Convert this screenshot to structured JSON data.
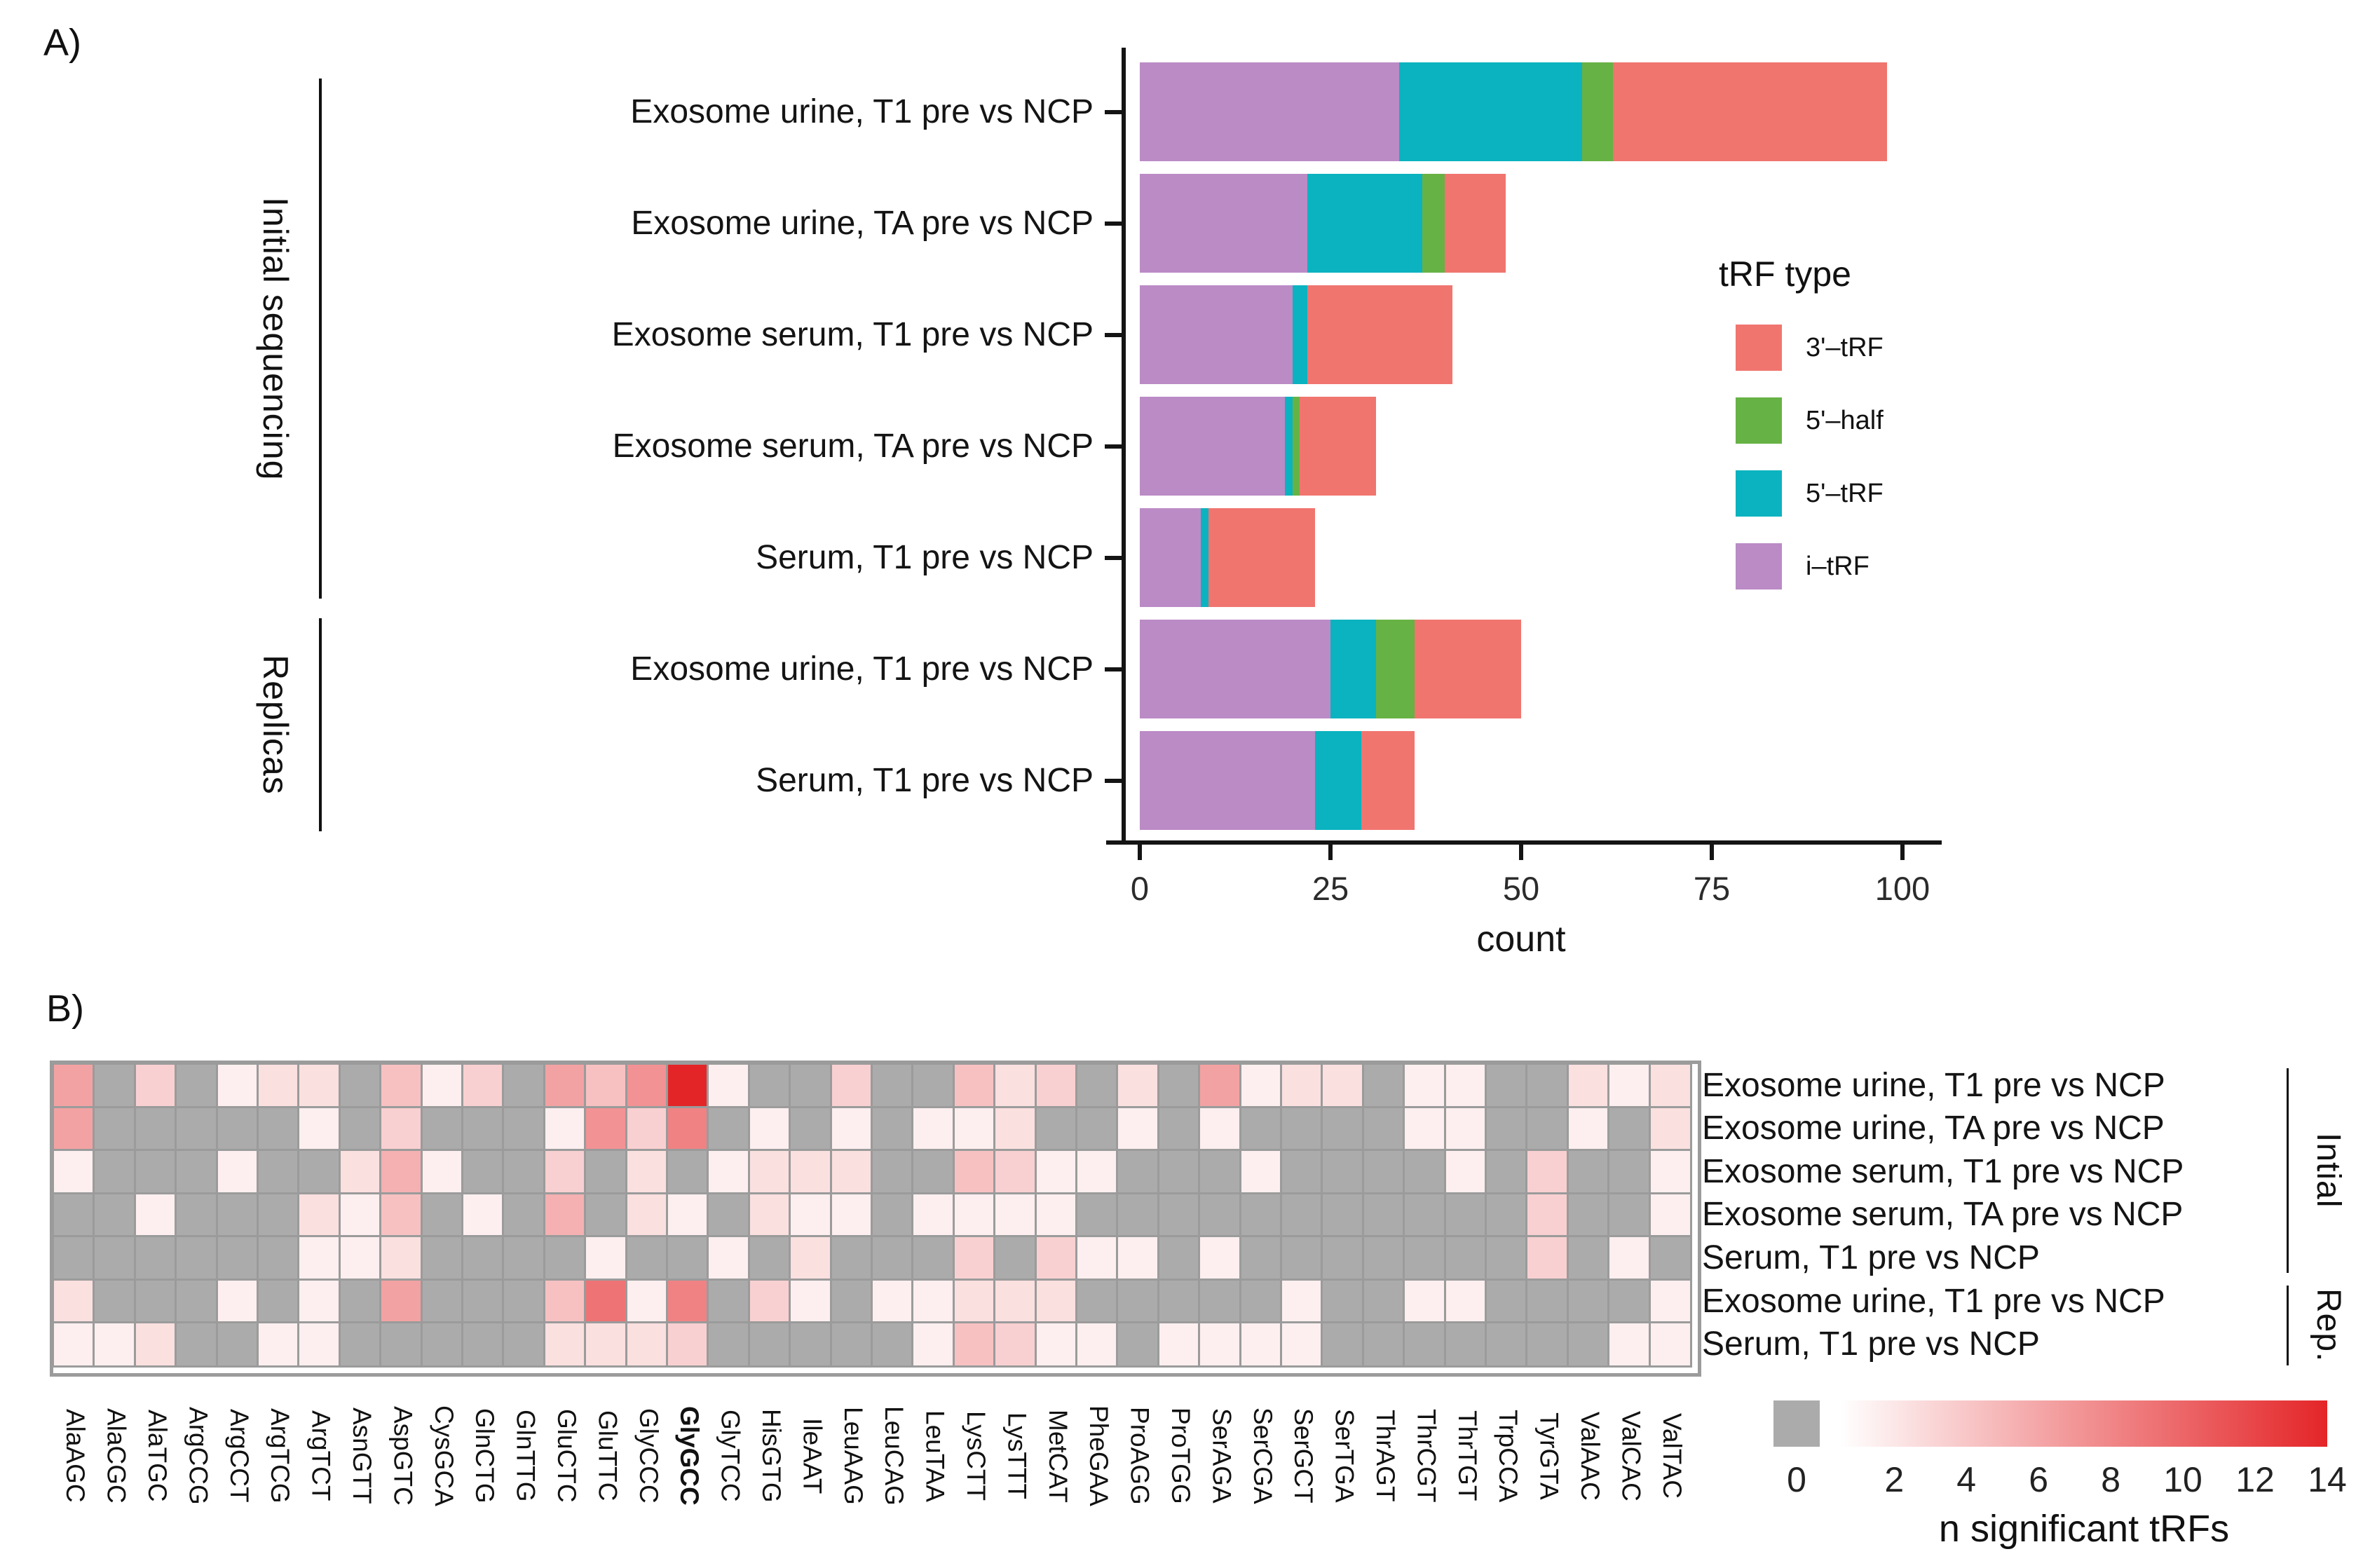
{
  "panel_a": {
    "label": "A)"
  },
  "panel_b": {
    "label": "B)"
  },
  "chart_data": [
    {
      "id": "trf-type-stacked-bars",
      "type": "bar",
      "orientation": "horizontal",
      "stacked": true,
      "title": "",
      "xlabel": "count",
      "xlim": [
        0,
        100
      ],
      "xticks": [
        0,
        25,
        50,
        75,
        100
      ],
      "categories": [
        "Exosome urine, T1 pre vs NCP",
        "Exosome urine, TA pre vs NCP",
        "Exosome serum, T1 pre vs NCP",
        "Exosome serum, TA pre vs NCP",
        "Serum, T1 pre vs NCP",
        "Exosome urine, T1 pre vs NCP",
        "Serum, T1 pre vs NCP"
      ],
      "series": [
        {
          "name": "i–tRF",
          "color": "#BB8BC6",
          "values": [
            34,
            22,
            20,
            19,
            8,
            25,
            23
          ]
        },
        {
          "name": "5'–tRF",
          "color": "#0AB3BF",
          "values": [
            24,
            15,
            2,
            1,
            1,
            6,
            6
          ]
        },
        {
          "name": "5'–half",
          "color": "#67B244",
          "values": [
            4,
            3,
            0,
            1,
            0,
            5,
            0
          ]
        },
        {
          "name": "3'–tRF",
          "color": "#F0756F",
          "values": [
            36,
            8,
            19,
            10,
            14,
            14,
            7
          ]
        }
      ],
      "legend_title": "tRF type",
      "legend_position": "right",
      "legend": [
        {
          "label": "3'–tRF",
          "color": "#F0756F"
        },
        {
          "label": "5'–half",
          "color": "#67B244"
        },
        {
          "label": "5'–tRF",
          "color": "#0AB3BF"
        },
        {
          "label": "i–tRF",
          "color": "#BB8BC6"
        }
      ],
      "group_brackets": [
        {
          "label": "Initial sequencing",
          "from": 0,
          "to": 4
        },
        {
          "label": "Replicas",
          "from": 5,
          "to": 6
        }
      ]
    },
    {
      "id": "significant-trfs-heatmap",
      "type": "heatmap",
      "columns": [
        "AlaAGC",
        "AlaCGC",
        "AlaTGC",
        "ArgCCG",
        "ArgCCT",
        "ArgTCG",
        "ArgTCT",
        "AsnGTT",
        "AspGTC",
        "CysGCA",
        "GlnCTG",
        "GlnTTG",
        "GluCTC",
        "GluTTC",
        "GlyCCC",
        "GlyGCC",
        "GlyTCC",
        "HisGTG",
        "IleAAT",
        "LeuAAG",
        "LeuCAG",
        "LeuTAA",
        "LysCTT",
        "LysTTT",
        "MetCAT",
        "PheGAA",
        "ProAGG",
        "ProTGG",
        "SerAGA",
        "SerCGA",
        "SerGCT",
        "SerTGA",
        "ThrAGT",
        "ThrCGT",
        "ThrTGT",
        "TrpCCA",
        "TyrGTA",
        "ValAAC",
        "ValCAC",
        "ValTAC"
      ],
      "bold_column": "GlyGCC",
      "rows": [
        "Exosome urine, T1 pre vs NCP",
        "Exosome urine, TA pre vs NCP",
        "Exosome serum, T1 pre vs NCP",
        "Exosome serum, TA  pre vs NCP",
        "Serum, T1 pre vs NCP",
        "Exosome urine, T1 pre vs NCP",
        "Serum, T1 pre vs NCP"
      ],
      "row_brackets": [
        {
          "label": "Intial",
          "from": 0,
          "to": 4
        },
        {
          "label": "Rep.",
          "from": 5,
          "to": 6
        }
      ],
      "values": [
        [
          6,
          0,
          3,
          0,
          1,
          2,
          2,
          0,
          4,
          1,
          3,
          0,
          6,
          4,
          7,
          14,
          1,
          0,
          0,
          3,
          0,
          0,
          4,
          2,
          3,
          0,
          2,
          0,
          6,
          1,
          2,
          2,
          0,
          1,
          1,
          0,
          0,
          2,
          1,
          2
        ],
        [
          6,
          0,
          0,
          0,
          0,
          0,
          1,
          0,
          3,
          0,
          0,
          0,
          1,
          7,
          3,
          8,
          0,
          1,
          0,
          1,
          0,
          1,
          1,
          2,
          0,
          0,
          1,
          0,
          1,
          0,
          0,
          0,
          0,
          1,
          1,
          0,
          0,
          1,
          0,
          2
        ],
        [
          1,
          0,
          0,
          0,
          1,
          0,
          0,
          2,
          5,
          1,
          0,
          0,
          3,
          0,
          2,
          0,
          1,
          2,
          2,
          2,
          0,
          0,
          4,
          3,
          1,
          1,
          0,
          0,
          0,
          1,
          0,
          0,
          0,
          0,
          1,
          0,
          3,
          0,
          0,
          1
        ],
        [
          0,
          0,
          1,
          0,
          0,
          0,
          2,
          1,
          4,
          0,
          1,
          0,
          5,
          0,
          2,
          1,
          0,
          2,
          1,
          1,
          0,
          1,
          1,
          1,
          1,
          0,
          0,
          0,
          0,
          0,
          0,
          0,
          0,
          0,
          0,
          0,
          3,
          0,
          0,
          1
        ],
        [
          0,
          0,
          0,
          0,
          0,
          0,
          1,
          1,
          2,
          0,
          0,
          0,
          0,
          1,
          0,
          0,
          1,
          0,
          2,
          0,
          0,
          0,
          3,
          0,
          3,
          1,
          1,
          0,
          1,
          0,
          0,
          0,
          0,
          0,
          0,
          0,
          3,
          0,
          1,
          0
        ],
        [
          2,
          0,
          0,
          0,
          1,
          0,
          1,
          0,
          6,
          0,
          0,
          0,
          4,
          9,
          1,
          8,
          0,
          3,
          1,
          0,
          1,
          1,
          2,
          2,
          2,
          0,
          0,
          0,
          0,
          0,
          1,
          0,
          0,
          1,
          1,
          0,
          0,
          0,
          0,
          1
        ],
        [
          1,
          1,
          2,
          0,
          0,
          1,
          1,
          0,
          0,
          0,
          0,
          0,
          2,
          2,
          2,
          3,
          0,
          0,
          0,
          0,
          0,
          1,
          4,
          3,
          1,
          1,
          0,
          1,
          1,
          1,
          1,
          0,
          0,
          0,
          0,
          0,
          0,
          0,
          1,
          1
        ]
      ],
      "zero_color": "#ABABAB",
      "low_color": "#FFFFFF",
      "high_color": "#E42528",
      "grid_color": "#9B9B9B",
      "colorbar": {
        "zero_label": "0",
        "ticks": [
          2,
          4,
          6,
          8,
          10,
          12,
          14
        ],
        "min": 0,
        "max": 14,
        "title": "n significant tRFs"
      }
    }
  ]
}
